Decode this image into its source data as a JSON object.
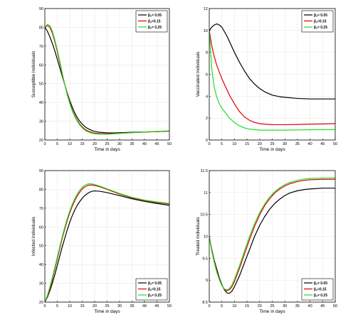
{
  "legend_labels": [
    "βₐ= 0.05",
    "βₐ=0.15",
    "βₐ= 0.25"
  ],
  "colors": [
    "#000000",
    "#e00000",
    "#22dd22"
  ],
  "chart_data": [
    {
      "type": "line",
      "xlabel": "Time in days",
      "ylabel": "Susceptible individuals",
      "xlim": [
        0,
        50
      ],
      "ylim": [
        20,
        90
      ],
      "xticks": [
        0,
        5,
        10,
        15,
        20,
        25,
        30,
        35,
        40,
        45,
        50
      ],
      "yticks": [
        20,
        30,
        40,
        50,
        60,
        70,
        80,
        90
      ],
      "grid": true,
      "legend_position": "top-right",
      "series": [
        {
          "name": "βₐ= 0.05",
          "color": "#000000",
          "x": [
            0,
            1,
            2,
            3,
            4,
            5,
            6,
            7,
            8,
            9,
            10,
            11,
            12,
            13,
            14,
            15,
            16,
            17,
            18,
            19,
            20,
            22,
            25,
            28,
            30,
            35,
            40,
            45,
            50
          ],
          "y": [
            80,
            78,
            75,
            71.5,
            67.5,
            63,
            58.5,
            54,
            49.5,
            45,
            41,
            37.5,
            34.5,
            32,
            30,
            28.5,
            27.2,
            26.3,
            25.6,
            25,
            24.6,
            24.1,
            23.8,
            23.8,
            23.9,
            24.1,
            24.3,
            24.5,
            24.7
          ]
        },
        {
          "name": "βₐ=0.15",
          "color": "#e00000",
          "x": [
            0,
            1,
            2,
            3,
            4,
            5,
            6,
            7,
            8,
            9,
            10,
            11,
            12,
            13,
            14,
            15,
            16,
            17,
            18,
            19,
            20,
            22,
            25,
            28,
            30,
            35,
            40,
            45,
            50
          ],
          "y": [
            80,
            81,
            80,
            77,
            72.5,
            67,
            61,
            55,
            49.5,
            44.5,
            40,
            36,
            33,
            30.5,
            28.5,
            27,
            25.8,
            25,
            24.4,
            24,
            23.7,
            23.4,
            23.3,
            23.5,
            23.6,
            23.9,
            24.2,
            24.5,
            24.8
          ]
        },
        {
          "name": "βₐ= 0.25",
          "color": "#22dd22",
          "x": [
            0,
            1,
            2,
            3,
            4,
            5,
            6,
            7,
            8,
            9,
            10,
            11,
            12,
            13,
            14,
            15,
            16,
            17,
            18,
            19,
            20,
            22,
            25,
            28,
            30,
            35,
            40,
            45,
            50
          ],
          "y": [
            80,
            81.5,
            81,
            78,
            73.5,
            68,
            62,
            55.5,
            49.5,
            44,
            39.5,
            35.5,
            32.5,
            30,
            28,
            26.5,
            25.3,
            24.5,
            24,
            23.6,
            23.3,
            23.1,
            23.1,
            23.3,
            23.5,
            23.9,
            24.3,
            24.6,
            24.9
          ]
        }
      ]
    },
    {
      "type": "line",
      "xlabel": "Time in days",
      "ylabel": "Vaccinated individuals",
      "xlim": [
        0,
        50
      ],
      "ylim": [
        0,
        12
      ],
      "xticks": [
        0,
        5,
        10,
        15,
        20,
        25,
        30,
        35,
        40,
        45,
        50
      ],
      "yticks": [
        0,
        2,
        4,
        6,
        8,
        10,
        12
      ],
      "grid": true,
      "legend_position": "top-right",
      "series": [
        {
          "name": "βₐ= 0.05",
          "color": "#000000",
          "x": [
            0,
            1,
            2,
            3,
            4,
            5,
            6,
            7,
            8,
            10,
            12,
            14,
            16,
            18,
            20,
            22,
            25,
            28,
            30,
            35,
            40,
            45,
            50
          ],
          "y": [
            10,
            10.3,
            10.5,
            10.6,
            10.5,
            10.3,
            9.9,
            9.5,
            9,
            8,
            7.1,
            6.3,
            5.6,
            5.1,
            4.7,
            4.4,
            4.1,
            3.95,
            3.9,
            3.8,
            3.75,
            3.75,
            3.75
          ]
        },
        {
          "name": "βₐ=0.15",
          "color": "#e00000",
          "x": [
            0,
            1,
            2,
            3,
            4,
            5,
            6,
            7,
            8,
            10,
            12,
            14,
            16,
            18,
            20,
            22,
            25,
            28,
            30,
            35,
            40,
            45,
            50
          ],
          "y": [
            10,
            8.6,
            7.6,
            6.8,
            6.2,
            5.6,
            5.1,
            4.6,
            4.1,
            3.3,
            2.6,
            2.1,
            1.8,
            1.6,
            1.5,
            1.45,
            1.4,
            1.4,
            1.4,
            1.42,
            1.45,
            1.47,
            1.5
          ]
        },
        {
          "name": "βₐ= 0.25",
          "color": "#22dd22",
          "x": [
            0,
            1,
            2,
            3,
            4,
            5,
            6,
            7,
            8,
            10,
            12,
            14,
            16,
            18,
            20,
            22,
            25,
            28,
            30,
            35,
            40,
            45,
            50
          ],
          "y": [
            10,
            6.5,
            4.8,
            3.9,
            3.3,
            2.9,
            2.6,
            2.3,
            2,
            1.6,
            1.3,
            1.1,
            1,
            0.95,
            0.9,
            0.9,
            0.9,
            0.9,
            0.9,
            0.92,
            0.94,
            0.95,
            0.95
          ]
        }
      ]
    },
    {
      "type": "line",
      "xlabel": "Time in days",
      "ylabel": "Infected individuals",
      "xlim": [
        0,
        50
      ],
      "ylim": [
        20,
        90
      ],
      "xticks": [
        0,
        5,
        10,
        15,
        20,
        25,
        30,
        35,
        40,
        45,
        50
      ],
      "yticks": [
        20,
        30,
        40,
        50,
        60,
        70,
        80,
        90
      ],
      "grid": true,
      "legend_position": "bottom-right",
      "series": [
        {
          "name": "βₐ= 0.05",
          "color": "#000000",
          "x": [
            0,
            1,
            2,
            3,
            4,
            5,
            6,
            7,
            8,
            9,
            10,
            11,
            12,
            13,
            14,
            15,
            16,
            17,
            18,
            19,
            20,
            22,
            25,
            28,
            30,
            35,
            40,
            45,
            50
          ],
          "y": [
            20,
            22.5,
            26,
            30,
            34.5,
            39.5,
            44.5,
            49.5,
            54,
            58.5,
            62.5,
            66,
            69,
            71.5,
            73.5,
            75.3,
            76.7,
            77.7,
            78.5,
            79,
            79.2,
            79,
            78.3,
            77.3,
            76.7,
            75,
            73.6,
            72.5,
            71.5
          ]
        },
        {
          "name": "βₐ=0.15",
          "color": "#e00000",
          "x": [
            0,
            1,
            2,
            3,
            4,
            5,
            6,
            7,
            8,
            9,
            10,
            11,
            12,
            13,
            14,
            15,
            16,
            17,
            18,
            19,
            20,
            22,
            25,
            28,
            30,
            35,
            40,
            45,
            50
          ],
          "y": [
            20,
            23,
            27,
            32,
            37.5,
            43,
            48.5,
            54,
            59,
            63.5,
            67.5,
            71,
            74,
            76.5,
            78.5,
            80.2,
            81.3,
            82,
            82.3,
            82.3,
            82.1,
            81.4,
            80,
            78.5,
            77.5,
            75.5,
            74,
            73,
            72.2
          ]
        },
        {
          "name": "βₐ= 0.25",
          "color": "#22dd22",
          "x": [
            0,
            1,
            2,
            3,
            4,
            5,
            6,
            7,
            8,
            9,
            10,
            11,
            12,
            13,
            14,
            15,
            16,
            17,
            18,
            19,
            20,
            22,
            25,
            28,
            30,
            35,
            40,
            45,
            50
          ],
          "y": [
            20,
            23.5,
            28,
            33,
            38.5,
            44,
            49.5,
            55,
            60,
            64.5,
            68.5,
            72,
            75,
            77.5,
            79.5,
            81.1,
            82.2,
            82.8,
            83,
            82.9,
            82.6,
            81.8,
            80.3,
            78.8,
            77.8,
            75.8,
            74.3,
            73.3,
            72.5
          ]
        }
      ]
    },
    {
      "type": "line",
      "xlabel": "Time in days",
      "ylabel": "Treated individuals",
      "xlim": [
        0,
        50
      ],
      "ylim": [
        8.5,
        11.5
      ],
      "xticks": [
        0,
        5,
        10,
        15,
        20,
        25,
        30,
        35,
        40,
        45,
        50
      ],
      "yticks": [
        8.5,
        9,
        9.5,
        10,
        10.5,
        11,
        11.5
      ],
      "grid": true,
      "legend_position": "bottom-right",
      "series": [
        {
          "name": "βₐ= 0.05",
          "color": "#000000",
          "x": [
            0,
            1,
            2,
            3,
            4,
            5,
            6,
            7,
            8,
            9,
            10,
            12,
            14,
            16,
            18,
            20,
            22,
            24,
            26,
            28,
            30,
            32,
            35,
            38,
            40,
            45,
            50
          ],
          "y": [
            10,
            9.7,
            9.45,
            9.25,
            9.05,
            8.9,
            8.78,
            8.71,
            8.7,
            8.75,
            8.85,
            9.1,
            9.4,
            9.7,
            10,
            10.25,
            10.45,
            10.62,
            10.75,
            10.85,
            10.93,
            10.99,
            11.04,
            11.07,
            11.08,
            11.1,
            11.1
          ]
        },
        {
          "name": "βₐ=0.15",
          "color": "#e00000",
          "x": [
            0,
            1,
            2,
            3,
            4,
            5,
            6,
            7,
            8,
            9,
            10,
            12,
            14,
            16,
            18,
            20,
            22,
            24,
            26,
            28,
            30,
            32,
            35,
            38,
            40,
            45,
            50
          ],
          "y": [
            10,
            9.68,
            9.42,
            9.2,
            9.02,
            8.88,
            8.79,
            8.76,
            8.78,
            8.85,
            8.97,
            9.27,
            9.6,
            9.93,
            10.23,
            10.49,
            10.7,
            10.86,
            10.99,
            11.08,
            11.15,
            11.2,
            11.25,
            11.28,
            11.29,
            11.3,
            11.3
          ]
        },
        {
          "name": "βₐ= 0.25",
          "color": "#22dd22",
          "x": [
            0,
            1,
            2,
            3,
            4,
            5,
            6,
            7,
            8,
            9,
            10,
            12,
            14,
            16,
            18,
            20,
            22,
            24,
            26,
            28,
            30,
            32,
            35,
            38,
            40,
            45,
            50
          ],
          "y": [
            10,
            9.66,
            9.4,
            9.18,
            9.01,
            8.88,
            8.8,
            8.78,
            8.81,
            8.89,
            9.02,
            9.33,
            9.67,
            10,
            10.29,
            10.54,
            10.74,
            10.9,
            11.02,
            11.11,
            11.18,
            11.23,
            11.28,
            11.31,
            11.32,
            11.33,
            11.33
          ]
        }
      ]
    }
  ]
}
